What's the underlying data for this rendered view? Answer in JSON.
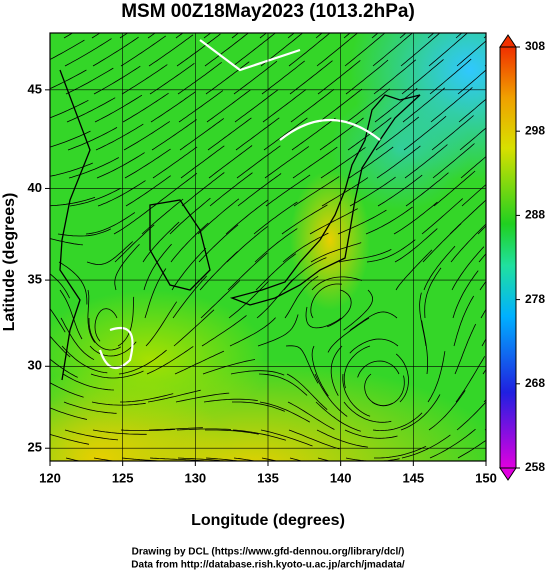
{
  "chart_data": {
    "type": "map",
    "title": "MSM 00Z18May2023 (1013.2hPa)",
    "x_label": "Longitude (degrees)",
    "y_label": "Latitude  (degrees)",
    "xlim": [
      120,
      150
    ],
    "xticks": [
      120,
      125,
      130,
      135,
      140,
      145,
      150
    ],
    "ylim": [
      24.2,
      47.7
    ],
    "yticks": [
      25,
      30,
      35,
      40,
      45
    ],
    "projection": "mercator",
    "colorbar": {
      "clim": [
        258,
        308
      ],
      "ticks": [
        258,
        268,
        278,
        288,
        298,
        308
      ]
    },
    "footer": [
      "Drawing by DCL (https://www.gfd-dennou.org/library/dcl/)",
      "Data from http://database.rish.kyoto-u.ac.jp/arch/jmadata/"
    ]
  }
}
